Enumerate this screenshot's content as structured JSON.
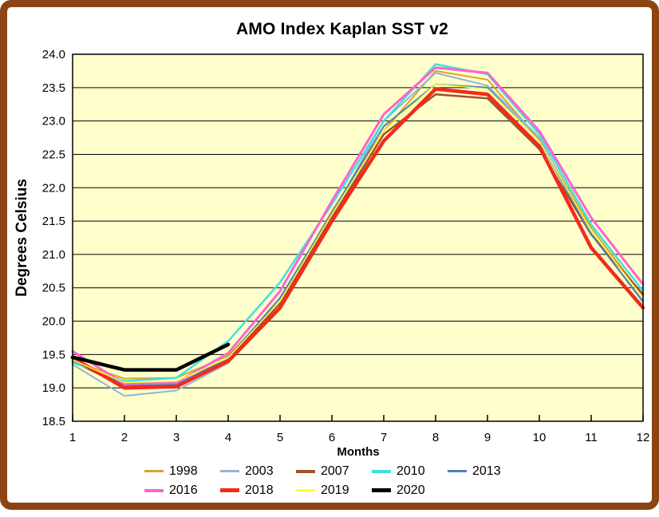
{
  "window": {
    "frame_color": "#8B4513",
    "background": "#FFFFFF"
  },
  "chart_data": {
    "type": "line",
    "title": "AMO Index Kaplan SST v2",
    "xlabel": "Months",
    "ylabel": "Degrees Celsius",
    "x": [
      1,
      2,
      3,
      4,
      5,
      6,
      7,
      8,
      9,
      10,
      11,
      12
    ],
    "ylim": [
      18.5,
      24.0
    ],
    "ytick_step": 0.5,
    "grid": true,
    "plot_bg": "#FFFFCC",
    "axis_color": "#000000",
    "legend_position": "bottom",
    "legend_columns": 5,
    "series": [
      {
        "name": "1998",
        "color": "#D9A427",
        "width": 2,
        "values": [
          19.4,
          19.14,
          19.15,
          19.48,
          20.3,
          21.65,
          22.85,
          23.75,
          23.62,
          22.72,
          21.4,
          20.38
        ]
      },
      {
        "name": "2003",
        "color": "#95B3D7",
        "width": 2,
        "values": [
          19.35,
          18.88,
          18.96,
          19.37,
          20.3,
          21.6,
          23.0,
          23.72,
          23.53,
          22.75,
          21.32,
          20.28
        ]
      },
      {
        "name": "2007",
        "color": "#A5502B",
        "width": 2.5,
        "values": [
          19.4,
          19.02,
          19.04,
          19.42,
          20.27,
          21.55,
          22.8,
          23.4,
          23.34,
          22.58,
          21.3,
          20.4
        ]
      },
      {
        "name": "2010",
        "color": "#40E0E0",
        "width": 2.5,
        "values": [
          19.38,
          19.1,
          19.15,
          19.7,
          20.58,
          21.75,
          23.0,
          23.85,
          23.7,
          22.8,
          21.45,
          20.45
        ]
      },
      {
        "name": "2013",
        "color": "#4F81BD",
        "width": 2,
        "values": [
          19.42,
          19.05,
          19.05,
          19.45,
          20.35,
          21.62,
          22.92,
          23.55,
          23.5,
          22.7,
          21.3,
          20.3
        ]
      },
      {
        "name": "2016",
        "color": "#FF63CE",
        "width": 3,
        "values": [
          19.55,
          19.06,
          19.08,
          19.52,
          20.45,
          21.8,
          23.1,
          23.8,
          23.72,
          22.85,
          21.55,
          20.55
        ]
      },
      {
        "name": "2018",
        "color": "#F02C1C",
        "width": 4.5,
        "values": [
          19.45,
          19.0,
          19.02,
          19.4,
          20.2,
          21.5,
          22.7,
          23.48,
          23.4,
          22.62,
          21.1,
          20.2
        ]
      },
      {
        "name": "2019",
        "color": "#FFFF33",
        "width": 1.5,
        "values": [
          19.42,
          19.08,
          19.1,
          19.45,
          20.3,
          21.6,
          22.85,
          23.55,
          23.48,
          22.7,
          21.35,
          20.35
        ]
      },
      {
        "name": "2020",
        "color": "#000000",
        "width": 4.5,
        "values": [
          19.46,
          19.27,
          19.27,
          19.65,
          null,
          null,
          null,
          null,
          null,
          null,
          null,
          null
        ]
      }
    ]
  }
}
